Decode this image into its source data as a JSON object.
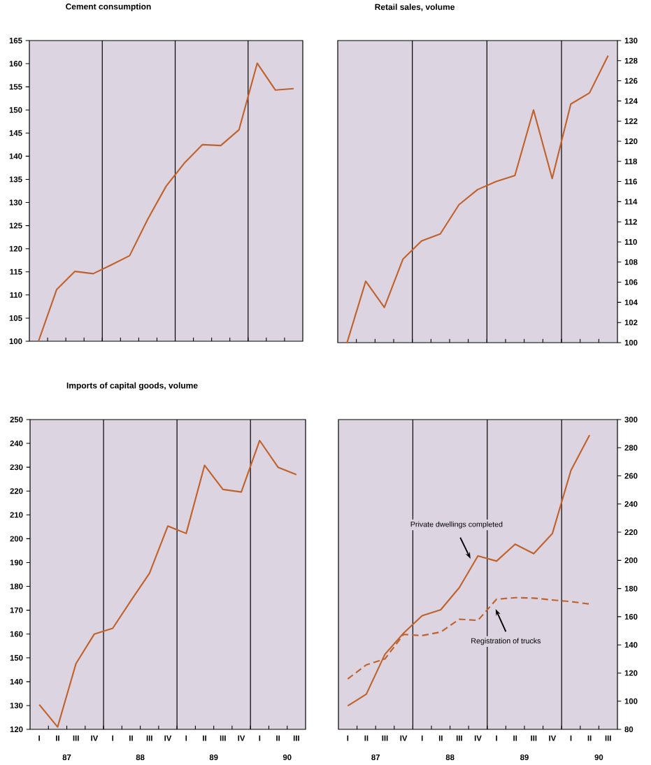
{
  "chart_data": [
    {
      "type": "line",
      "title": "Cement consumption",
      "categories": [
        null,
        null,
        null,
        null,
        null,
        null,
        null,
        null,
        null,
        null,
        null,
        null,
        null,
        null,
        null
      ],
      "series": [
        {
          "color": "#c0622c",
          "values": [
            100,
            111.2,
            115.1,
            114.6,
            116.5,
            118.5,
            126.4,
            133.5,
            138.5,
            142.5,
            142.3,
            145.7,
            160.1,
            154.3,
            154.6
          ]
        }
      ],
      "ylim": [
        100,
        165
      ],
      "yticks": [
        100,
        105,
        110,
        115,
        120,
        125,
        130,
        135,
        140,
        145,
        150,
        155,
        160,
        165
      ]
    },
    {
      "type": "line",
      "title": "Retail sales, volume",
      "categories": [
        null,
        null,
        null,
        null,
        null,
        null,
        null,
        null,
        null,
        null,
        null,
        null,
        null,
        null,
        null
      ],
      "series": [
        {
          "color": "#c0622c",
          "values": [
            100,
            106.1,
            103.5,
            108.3,
            110.1,
            110.8,
            113.7,
            115.2,
            116.0,
            116.6,
            123.1,
            116.3,
            123.7,
            124.8,
            128.5
          ]
        }
      ],
      "ylim": [
        100,
        130
      ],
      "yticks": [
        100,
        102,
        104,
        106,
        108,
        110,
        112,
        114,
        116,
        118,
        120,
        122,
        124,
        126,
        128,
        130
      ]
    },
    {
      "type": "line",
      "title": "Imports of capital goods, volume",
      "categories": [
        "I",
        "II",
        "III",
        "IV",
        "I",
        "II",
        "III",
        "IV",
        "I",
        "II",
        "III",
        "IV",
        "I",
        "II",
        "III"
      ],
      "series": [
        {
          "color": "#c0622c",
          "values": [
            130.4,
            121.0,
            147.6,
            160.0,
            162.4,
            174.1,
            185.5,
            205.3,
            202.2,
            230.8,
            220.7,
            219.6,
            241.2,
            230.0,
            226.9
          ]
        }
      ],
      "ylim": [
        120,
        250
      ],
      "yticks": [
        120,
        130,
        140,
        150,
        160,
        170,
        180,
        190,
        200,
        210,
        220,
        230,
        240,
        250
      ],
      "annotations": [
        "87",
        "88",
        "89",
        "90"
      ]
    },
    {
      "type": "line",
      "categories": [
        "I",
        "II",
        "III",
        "IV",
        "I",
        "II",
        "III",
        "IV",
        "I",
        "II",
        "III",
        "IV",
        "I",
        "II",
        "III"
      ],
      "series": [
        {
          "name": "Private dwellings completed",
          "color": "#c0622c",
          "axis": "y2",
          "line_style": "solid",
          "values": [
            96.7,
            105.0,
            133.3,
            148.3,
            160.7,
            164.9,
            180.7,
            203.2,
            199.5,
            211.5,
            204.8,
            219.0,
            263.9,
            288.9,
            null
          ]
        },
        {
          "name": "Registration of trucks",
          "color": "#c0622c",
          "axis": "y2",
          "line_style": "dashed",
          "values": [
            115.8,
            125.8,
            130.0,
            147.4,
            146.6,
            149.1,
            158.2,
            157.4,
            172.4,
            173.5,
            173.2,
            171.9,
            170.7,
            169.0,
            null
          ]
        }
      ],
      "y2lim": [
        80,
        300
      ],
      "y2ticks": [
        80,
        100,
        120,
        140,
        160,
        180,
        200,
        220,
        240,
        260,
        280,
        300
      ],
      "annotations": [
        "87",
        "88",
        "89",
        "90"
      ]
    }
  ]
}
